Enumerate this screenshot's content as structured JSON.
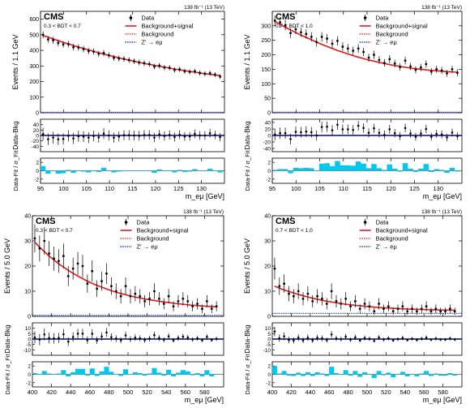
{
  "figure": {
    "panel_count": 4
  },
  "legend_labels": [
    "Data",
    "Background+signal",
    "Background",
    "Z' → eμ"
  ],
  "colors": {
    "data": "#000000",
    "fit": "#e41a1c",
    "background": "#e41a1c",
    "signal": "#1f3fbf",
    "pull": "#00c8ee",
    "ratio_line": "#00008b"
  },
  "chart_data": [
    {
      "type": "scatter",
      "experiment": "CMS",
      "lumi": "138 fb⁻¹ (13 TeV)",
      "category": "0.3 < BDT < 0.7",
      "ylabel": "Events / 1.1 GeV",
      "ratio_ylabel": "Data-Bkg",
      "pull_ylabel": "Data-Fit / σ_Fit",
      "xlabel": "m_eμ [GeV]",
      "xlim": [
        95,
        135
      ],
      "ylim": [
        0,
        650
      ],
      "yticks": [
        0,
        100,
        200,
        300,
        400,
        500,
        600
      ],
      "xticks": [
        95,
        100,
        105,
        110,
        115,
        120,
        125,
        130
      ],
      "ratio_ylim": [
        -60,
        60
      ],
      "ratio_yticks": [
        -40,
        -20,
        0,
        20,
        40
      ],
      "pull_ylim": [
        -3,
        3
      ],
      "pull_yticks": [
        -2,
        0,
        2
      ],
      "x": [
        95.55,
        96.65,
        97.75,
        98.85,
        99.95,
        101.05,
        102.15,
        103.25,
        104.35,
        105.45,
        106.55,
        107.65,
        108.75,
        109.85,
        110.95,
        112.05,
        113.15,
        114.25,
        115.35,
        116.45,
        117.55,
        118.65,
        119.75,
        120.85,
        121.95,
        123.05,
        124.15,
        125.25,
        126.35,
        127.45,
        128.55,
        129.65,
        130.75,
        131.85,
        132.95,
        134.05
      ],
      "data": [
        500,
        470,
        465,
        448,
        438,
        440,
        420,
        418,
        408,
        395,
        392,
        378,
        383,
        368,
        352,
        348,
        345,
        338,
        330,
        322,
        318,
        312,
        296,
        302,
        290,
        288,
        274,
        278,
        266,
        262,
        266,
        255,
        250,
        254,
        244,
        232
      ],
      "fit": [
        495,
        484,
        473,
        462,
        451,
        441,
        431,
        421,
        412,
        403,
        394,
        385,
        376,
        368,
        360,
        352,
        344,
        337,
        330,
        323,
        316,
        310,
        304,
        298,
        292,
        286,
        280,
        275,
        270,
        265,
        260,
        255,
        250,
        246,
        242,
        238
      ],
      "signal_level": 3,
      "ratio": [
        5,
        -14,
        -8,
        -14,
        -13,
        -1,
        -11,
        -3,
        -4,
        -8,
        -2,
        -7,
        7,
        0,
        -8,
        -4,
        1,
        1,
        0,
        -1,
        2,
        2,
        -8,
        4,
        -2,
        2,
        -6,
        3,
        -4,
        -3,
        6,
        0,
        0,
        8,
        2,
        -6
      ],
      "pull": [
        1.1,
        -0.7,
        0.0,
        -0.7,
        -0.6,
        0.2,
        -0.5,
        0.0,
        -0.2,
        -0.4,
        -0.1,
        -0.3,
        0.7,
        0.0,
        -0.4,
        -0.2,
        0.1,
        0.1,
        0.0,
        -0.1,
        0.1,
        0.1,
        -0.5,
        0.3,
        -0.1,
        0.1,
        -0.4,
        0.2,
        -0.3,
        -0.2,
        0.4,
        0.0,
        0.0,
        0.5,
        0.1,
        -0.4
      ]
    },
    {
      "type": "scatter",
      "experiment": "CMS",
      "lumi": "138 fb⁻¹ (13 TeV)",
      "category": "0.7 < BDT < 1.0",
      "ylabel": "Events / 1.1 GeV",
      "ratio_ylabel": "Data-Bkg",
      "pull_ylabel": "Data-Fit / σ_Fit",
      "xlabel": "m_eμ [GeV]",
      "xlim": [
        95,
        135
      ],
      "ylim": [
        0,
        350
      ],
      "yticks": [
        0,
        50,
        100,
        150,
        200,
        250,
        300
      ],
      "xticks": [
        95,
        100,
        105,
        110,
        115,
        120,
        125,
        130
      ],
      "ratio_ylim": [
        -50,
        50
      ],
      "ratio_yticks": [
        -40,
        -20,
        0,
        20,
        40
      ],
      "pull_ylim": [
        -3,
        3
      ],
      "pull_yticks": [
        -2,
        0,
        2
      ],
      "x": [
        95.55,
        96.65,
        97.75,
        98.85,
        99.95,
        101.05,
        102.15,
        103.25,
        104.35,
        105.45,
        106.55,
        107.65,
        108.75,
        109.85,
        110.95,
        112.05,
        113.15,
        114.25,
        115.35,
        116.45,
        117.55,
        118.65,
        119.75,
        120.85,
        121.95,
        123.05,
        124.15,
        125.25,
        126.35,
        127.45,
        128.55,
        129.65,
        130.75,
        131.85,
        132.95,
        134.05
      ],
      "data": [
        318,
        312,
        302,
        275,
        288,
        278,
        272,
        262,
        244,
        262,
        256,
        238,
        248,
        228,
        222,
        214,
        222,
        210,
        190,
        200,
        182,
        172,
        185,
        170,
        158,
        180,
        160,
        148,
        156,
        168,
        142,
        150,
        146,
        136,
        150,
        138
      ],
      "fit": [
        315,
        305,
        295,
        286,
        277,
        268,
        260,
        252,
        244,
        236,
        229,
        222,
        215,
        209,
        203,
        197,
        192,
        187,
        182,
        178,
        174,
        170,
        166,
        163,
        160,
        157,
        154,
        152,
        150,
        148,
        146,
        145,
        143,
        142,
        141,
        140
      ],
      "signal_level": 2,
      "ratio": [
        3,
        7,
        7,
        -11,
        11,
        10,
        12,
        10,
        0,
        26,
        27,
        16,
        33,
        19,
        19,
        17,
        30,
        23,
        8,
        22,
        8,
        2,
        19,
        7,
        -2,
        23,
        6,
        -4,
        6,
        20,
        -4,
        5,
        3,
        -6,
        9,
        -2
      ],
      "pull": [
        0.2,
        0.4,
        0.4,
        -0.6,
        0.7,
        0.6,
        0.7,
        0.6,
        0.0,
        1.7,
        1.8,
        1.1,
        2.3,
        1.3,
        1.3,
        1.2,
        2.2,
        1.7,
        0.6,
        1.6,
        0.6,
        0.2,
        1.5,
        0.5,
        -0.2,
        1.8,
        0.5,
        -0.3,
        0.5,
        1.6,
        -0.3,
        0.4,
        0.2,
        -0.5,
        0.7,
        -0.2
      ]
    },
    {
      "type": "scatter",
      "experiment": "CMS",
      "lumi": "138 fb⁻¹ (13 TeV)",
      "category": "0.3 < BDT < 0.7",
      "ylabel": "Events / 5.0 GeV",
      "ratio_ylabel": "Data-Bkg",
      "pull_ylabel": "Data-Fit / σ_Fit",
      "xlabel": "m_eμ [GeV]",
      "xlim": [
        400,
        600
      ],
      "ylim": [
        0,
        40
      ],
      "yticks": [
        0,
        10,
        20,
        30,
        40
      ],
      "xticks": [
        400,
        420,
        440,
        460,
        480,
        500,
        520,
        540,
        560,
        580
      ],
      "ratio_ylim": [
        -15,
        15
      ],
      "ratio_yticks": [
        -10,
        -5,
        0,
        5,
        10
      ],
      "pull_ylim": [
        -3,
        3
      ],
      "pull_yticks": [
        -2,
        0,
        2
      ],
      "x": [
        402.5,
        407.5,
        412.5,
        417.5,
        422.5,
        427.5,
        432.5,
        437.5,
        442.5,
        447.5,
        452.5,
        457.5,
        462.5,
        467.5,
        472.5,
        477.5,
        482.5,
        487.5,
        492.5,
        497.5,
        502.5,
        507.5,
        512.5,
        517.5,
        522.5,
        527.5,
        532.5,
        537.5,
        542.5,
        547.5,
        552.5,
        557.5,
        562.5,
        567.5,
        572.5,
        577.5,
        582.5,
        587.5,
        592.5
      ],
      "data": [
        31,
        27,
        30,
        25,
        23,
        22,
        24,
        16,
        19,
        21,
        20,
        13,
        18,
        11,
        14,
        17,
        12,
        10,
        8,
        12,
        8,
        9,
        8,
        6,
        7,
        10,
        7,
        5,
        8,
        4,
        6,
        7,
        6,
        4,
        5,
        3,
        6,
        3,
        4
      ],
      "fit": [
        29.5,
        27.5,
        25.7,
        24.0,
        22.4,
        20.9,
        19.6,
        18.3,
        17.1,
        16.0,
        15.0,
        14.0,
        13.1,
        12.3,
        11.6,
        10.9,
        10.2,
        9.6,
        9.1,
        8.6,
        8.1,
        7.7,
        7.3,
        6.9,
        6.6,
        6.3,
        6.0,
        5.7,
        5.5,
        5.2,
        5.0,
        4.8,
        4.6,
        4.4,
        4.3,
        4.1,
        4.0,
        3.9,
        3.8
      ],
      "signal_level": 0.4,
      "ratio": [
        1.5,
        -0.5,
        4.3,
        1.0,
        0.6,
        1.1,
        4.4,
        -2.3,
        1.9,
        5.0,
        5.0,
        -1.0,
        4.9,
        -1.3,
        2.4,
        6.1,
        1.8,
        0.4,
        -1.1,
        3.4,
        -0.1,
        1.3,
        0.7,
        -0.9,
        0.4,
        3.7,
        1.0,
        -0.7,
        2.5,
        -1.2,
        1.0,
        2.2,
        1.4,
        -0.4,
        0.7,
        -1.1,
        2.0,
        -0.9,
        0.2
      ],
      "pull": [
        0.3,
        -0.1,
        0.8,
        0.2,
        0.1,
        0.2,
        1.0,
        -0.5,
        0.5,
        1.3,
        1.3,
        -0.3,
        1.4,
        -0.4,
        0.7,
        1.8,
        0.6,
        0.1,
        -0.4,
        1.2,
        0.0,
        0.5,
        0.3,
        -0.3,
        0.2,
        1.5,
        0.4,
        -0.3,
        1.1,
        -0.5,
        0.4,
        1.0,
        0.7,
        -0.2,
        0.3,
        -0.5,
        1.0,
        -0.5,
        0.1
      ]
    },
    {
      "type": "scatter",
      "experiment": "CMS",
      "lumi": "138 fb⁻¹ (13 TeV)",
      "category": "0.7 < BDT < 1.0",
      "ylabel": "Events / 5.0 GeV",
      "ratio_ylabel": "Data-Bkg",
      "pull_ylabel": "Data-Fit / σ_Fit",
      "xlabel": "m_eμ [GeV]",
      "xlim": [
        400,
        600
      ],
      "ylim": [
        0,
        40
      ],
      "yticks": [
        0,
        10,
        20,
        30,
        40
      ],
      "xticks": [
        400,
        420,
        440,
        460,
        480,
        500,
        520,
        540,
        560,
        580
      ],
      "ratio_ylim": [
        -15,
        15
      ],
      "ratio_yticks": [
        -10,
        -5,
        0,
        5,
        10
      ],
      "pull_ylim": [
        -3,
        3
      ],
      "pull_yticks": [
        -2,
        0,
        2
      ],
      "x": [
        402.5,
        407.5,
        412.5,
        417.5,
        422.5,
        427.5,
        432.5,
        437.5,
        442.5,
        447.5,
        452.5,
        457.5,
        462.5,
        467.5,
        472.5,
        477.5,
        482.5,
        487.5,
        492.5,
        497.5,
        502.5,
        507.5,
        512.5,
        517.5,
        522.5,
        527.5,
        532.5,
        537.5,
        542.5,
        547.5,
        552.5,
        557.5,
        562.5,
        567.5,
        572.5,
        577.5,
        582.5,
        587.5,
        592.5
      ],
      "data": [
        19,
        12,
        13,
        9,
        8,
        10,
        7,
        9,
        6,
        8,
        7,
        5,
        10,
        6,
        5,
        7,
        4,
        6,
        3,
        5,
        4,
        2,
        5,
        3,
        4,
        2,
        3,
        4,
        2,
        3,
        2,
        3,
        4,
        2,
        3,
        2,
        2,
        3,
        2
      ],
      "fit": [
        12.0,
        11.2,
        10.5,
        9.9,
        9.3,
        8.7,
        8.2,
        7.7,
        7.2,
        6.8,
        6.4,
        6.0,
        5.7,
        5.4,
        5.1,
        4.8,
        4.6,
        4.4,
        4.2,
        4.0,
        3.8,
        3.7,
        3.5,
        3.4,
        3.3,
        3.2,
        3.1,
        3.0,
        2.9,
        2.8,
        2.8,
        2.7,
        2.7,
        2.6,
        2.6,
        2.5,
        2.5,
        2.5,
        2.4
      ],
      "signal_level": 1.2,
      "ratio": [
        7.0,
        0.8,
        2.5,
        -0.9,
        -1.3,
        1.3,
        -1.2,
        1.3,
        -1.2,
        1.2,
        0.6,
        -1.0,
        4.3,
        0.6,
        -0.1,
        2.2,
        -0.6,
        1.6,
        -1.2,
        1.0,
        0.2,
        -1.7,
        1.5,
        -0.4,
        0.7,
        -1.2,
        -0.1,
        1.0,
        -0.9,
        0.2,
        -0.8,
        0.3,
        1.3,
        -0.6,
        0.4,
        -0.5,
        -0.5,
        0.5,
        -0.4
      ],
      "pull": [
        2.0,
        0.2,
        0.8,
        -0.3,
        -0.4,
        0.4,
        -0.4,
        0.5,
        -0.4,
        0.5,
        0.2,
        -0.4,
        1.8,
        0.3,
        0.0,
        1.0,
        -0.3,
        0.8,
        -0.6,
        0.5,
        0.1,
        -0.9,
        0.8,
        -0.2,
        0.4,
        -0.7,
        -0.1,
        0.6,
        -0.5,
        0.1,
        -0.5,
        0.2,
        0.8,
        -0.4,
        0.2,
        -0.3,
        -0.3,
        0.3,
        -0.3
      ]
    }
  ]
}
